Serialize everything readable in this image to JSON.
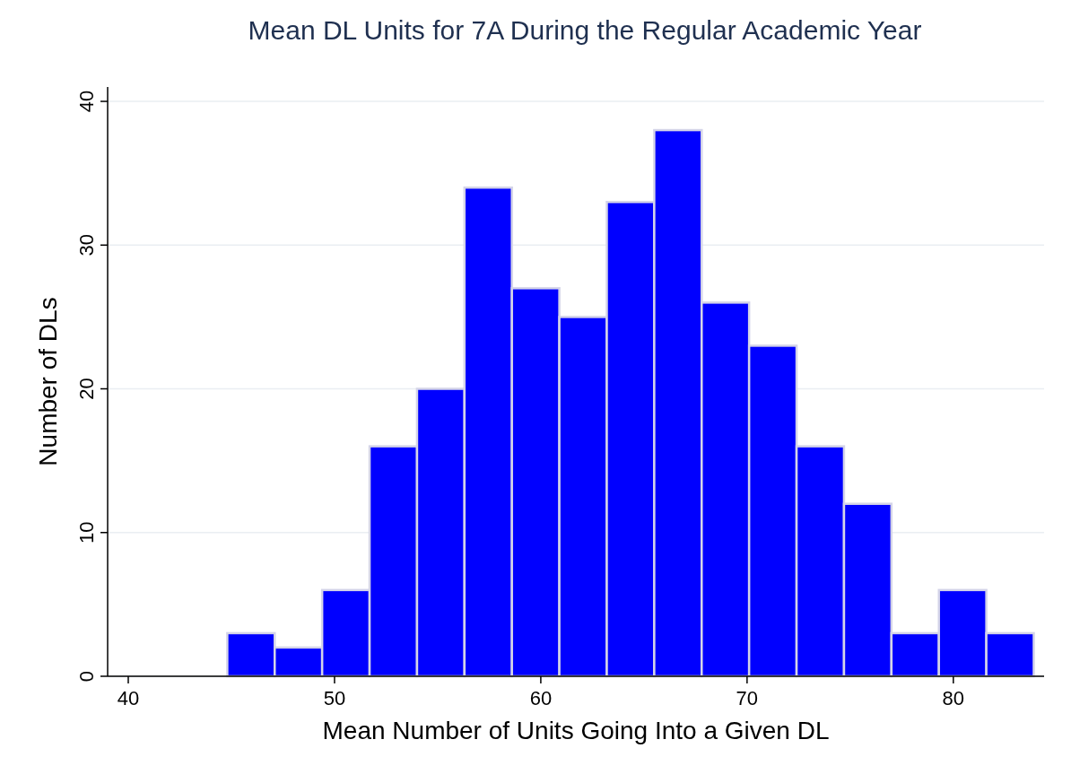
{
  "chart_data": {
    "type": "histogram",
    "title": "Mean DL Units for 7A During the Regular Academic Year",
    "xlabel": "Mean Number of Units Going Into a Given DL",
    "ylabel": "Number of DLs",
    "bins": [
      44.8,
      47.1,
      49.4,
      51.7,
      54.0,
      56.3,
      58.6,
      60.9,
      63.2,
      65.5,
      67.8,
      70.1,
      72.4,
      74.7,
      77.0,
      79.3,
      81.6,
      83.9
    ],
    "values": [
      3,
      2,
      6,
      16,
      20,
      34,
      27,
      25,
      33,
      38,
      26,
      23,
      16,
      12,
      3,
      6,
      3
    ],
    "color": "#0000ff",
    "xlim": [
      39,
      84.4
    ],
    "xticks": [
      40,
      50,
      60,
      70,
      80
    ],
    "ylim": [
      0,
      41
    ],
    "yticks": [
      0,
      10,
      20,
      30,
      40
    ],
    "grid": "y"
  }
}
